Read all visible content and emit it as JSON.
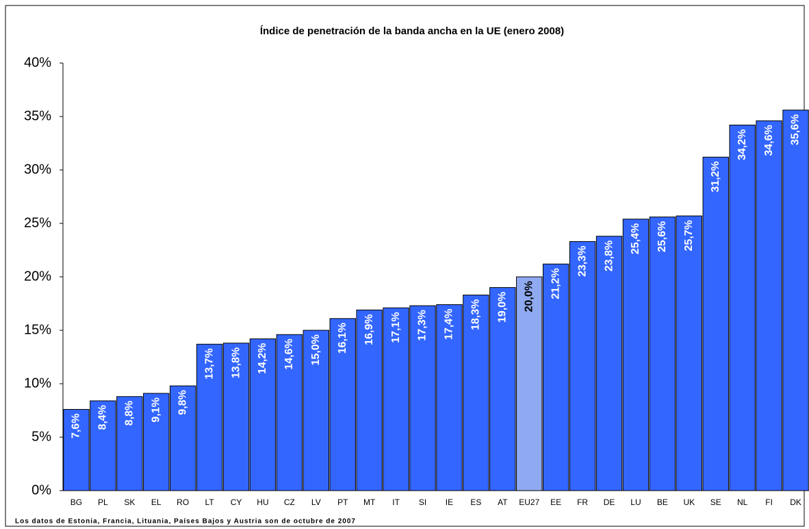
{
  "chart_data": {
    "type": "bar",
    "title": "Índice de penetración de la banda ancha en la UE (enero 2008)",
    "footnote": "Los datos de Estonia, Francia, Lituania, Países Bajos y Austria son de octubre de 2007",
    "categories": [
      "BG",
      "PL",
      "SK",
      "EL",
      "RO",
      "LT",
      "CY",
      "HU",
      "CZ",
      "LV",
      "PT",
      "MT",
      "IT",
      "SI",
      "IE",
      "ES",
      "AT",
      "EU27",
      "EE",
      "FR",
      "DE",
      "LU",
      "BE",
      "UK",
      "SE",
      "NL",
      "FI",
      "DK"
    ],
    "values": [
      7.6,
      8.4,
      8.8,
      9.1,
      9.8,
      13.7,
      13.8,
      14.2,
      14.6,
      15.0,
      16.1,
      16.9,
      17.1,
      17.3,
      17.4,
      18.3,
      19.0,
      20.0,
      21.2,
      23.3,
      23.8,
      25.4,
      25.6,
      25.7,
      31.2,
      34.2,
      34.6,
      35.6
    ],
    "value_labels": [
      "7,6%",
      "8,4%",
      "8,8%",
      "9,1%",
      "9,8%",
      "13,7%",
      "13,8%",
      "14,2%",
      "14,6%",
      "15,0%",
      "16,1%",
      "16,9%",
      "17,1%",
      "17,3%",
      "17,4%",
      "18,3%",
      "19,0%",
      "20,0%",
      "21,2%",
      "23,3%",
      "23,8%",
      "25,4%",
      "25,6%",
      "25,7%",
      "31,2%",
      "34,2%",
      "34,6%",
      "35,6%"
    ],
    "color": "#3366ff",
    "label_color": "#ffffff",
    "highlight": 17,
    "highlight_color": "#8faaf0",
    "highlight_label_color": "#000000",
    "ylim": [
      0,
      40
    ],
    "yticks": [
      {
        "value": 0,
        "label": "0%"
      },
      {
        "value": 5,
        "label": "5%"
      },
      {
        "value": 10,
        "label": "10%"
      },
      {
        "value": 15,
        "label": "15%"
      },
      {
        "value": 20,
        "label": "20%"
      },
      {
        "value": 25,
        "label": "25%"
      },
      {
        "value": 30,
        "label": "30%"
      },
      {
        "value": 35,
        "label": "35%"
      },
      {
        "value": 40,
        "label": "40%"
      }
    ],
    "grid": false
  }
}
